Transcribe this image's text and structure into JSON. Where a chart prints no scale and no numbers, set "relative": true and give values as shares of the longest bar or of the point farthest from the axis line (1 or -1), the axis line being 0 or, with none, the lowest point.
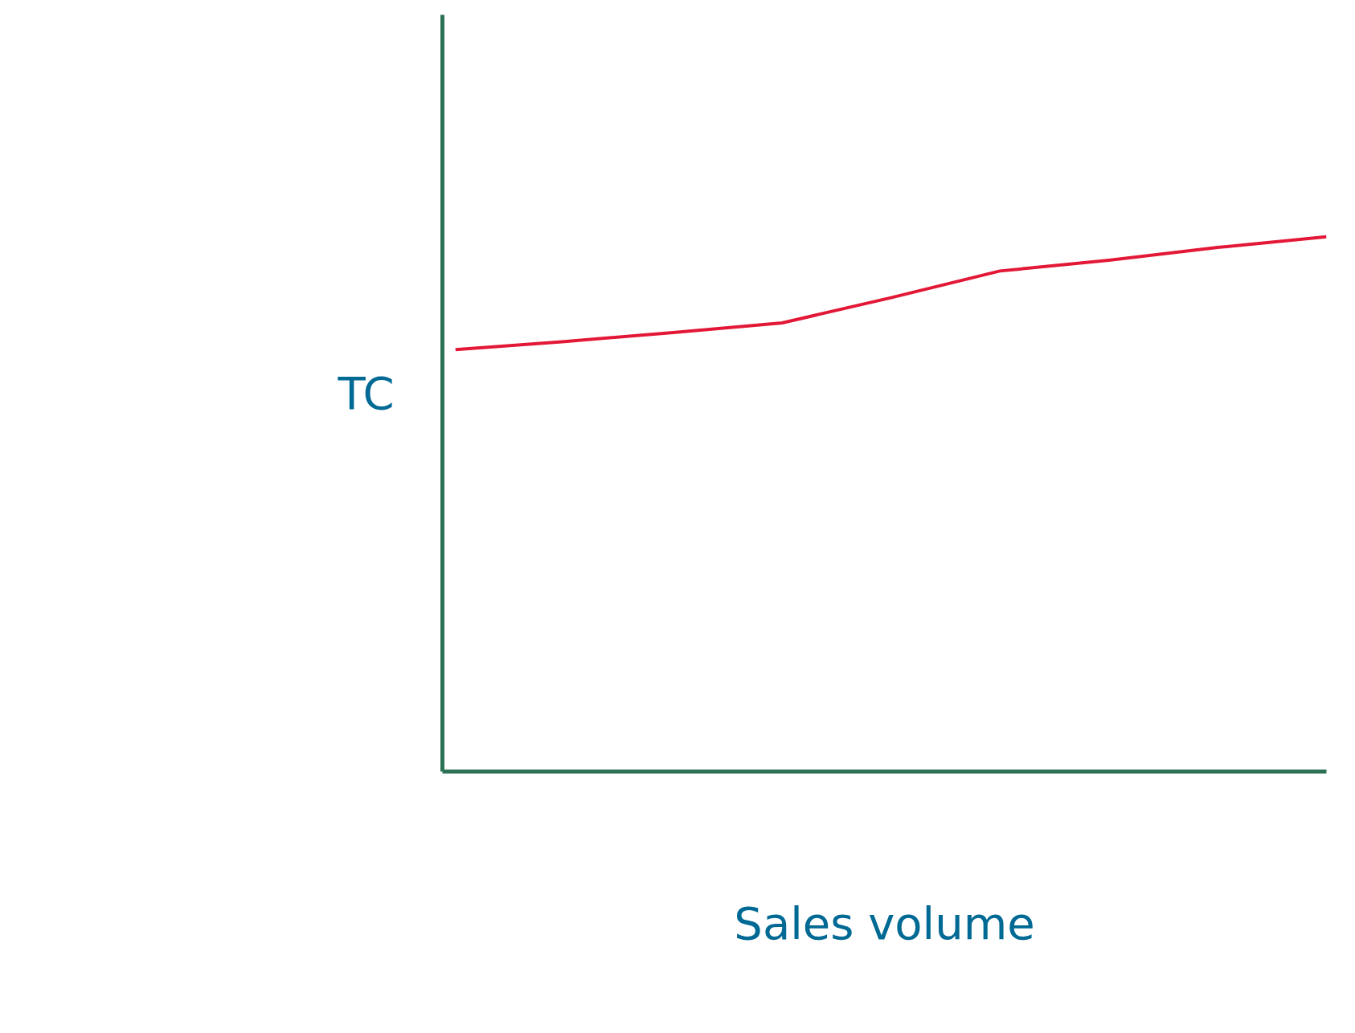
{
  "chart_data": {
    "type": "line",
    "relative": true,
    "xlabel": "Sales volume",
    "ylabel": "TC",
    "categories": [
      null,
      null,
      null,
      null,
      null,
      null,
      null,
      null,
      null
    ],
    "series": [
      {
        "color": "#e31837",
        "values": [
          0.789,
          0.804,
          0.821,
          0.839,
          0.886,
          0.936,
          0.956,
          0.98,
          1.0
        ]
      }
    ]
  }
}
